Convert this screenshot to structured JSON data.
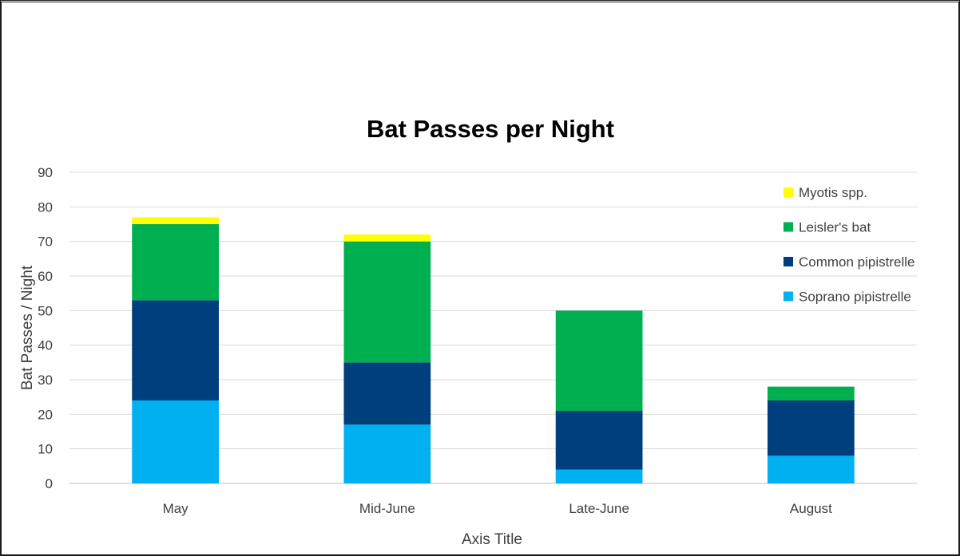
{
  "chart_data": {
    "type": "bar",
    "stacked": true,
    "title": "Bat Passes per Night",
    "xlabel": "Axis Title",
    "ylabel": "Bat Passes / Night",
    "ylim": [
      0,
      90
    ],
    "yticks": [
      0,
      10,
      20,
      30,
      40,
      50,
      60,
      70,
      80,
      90
    ],
    "grid": true,
    "legend_position": "top-right",
    "categories": [
      "May",
      "Mid-June",
      "Late-June",
      "August"
    ],
    "series": [
      {
        "name": "Soprano pipistrelle",
        "color": "#00b0f0",
        "values": [
          24,
          17,
          4,
          8
        ]
      },
      {
        "name": "Common pipistrelle",
        "color": "#003f7d",
        "values": [
          29,
          18,
          17,
          16
        ]
      },
      {
        "name": "Leisler's bat",
        "color": "#00b050",
        "values": [
          22,
          35,
          29,
          4
        ]
      },
      {
        "name": "Myotis spp.",
        "color": "#ffff00",
        "values": [
          2,
          2,
          0,
          0
        ]
      }
    ]
  }
}
